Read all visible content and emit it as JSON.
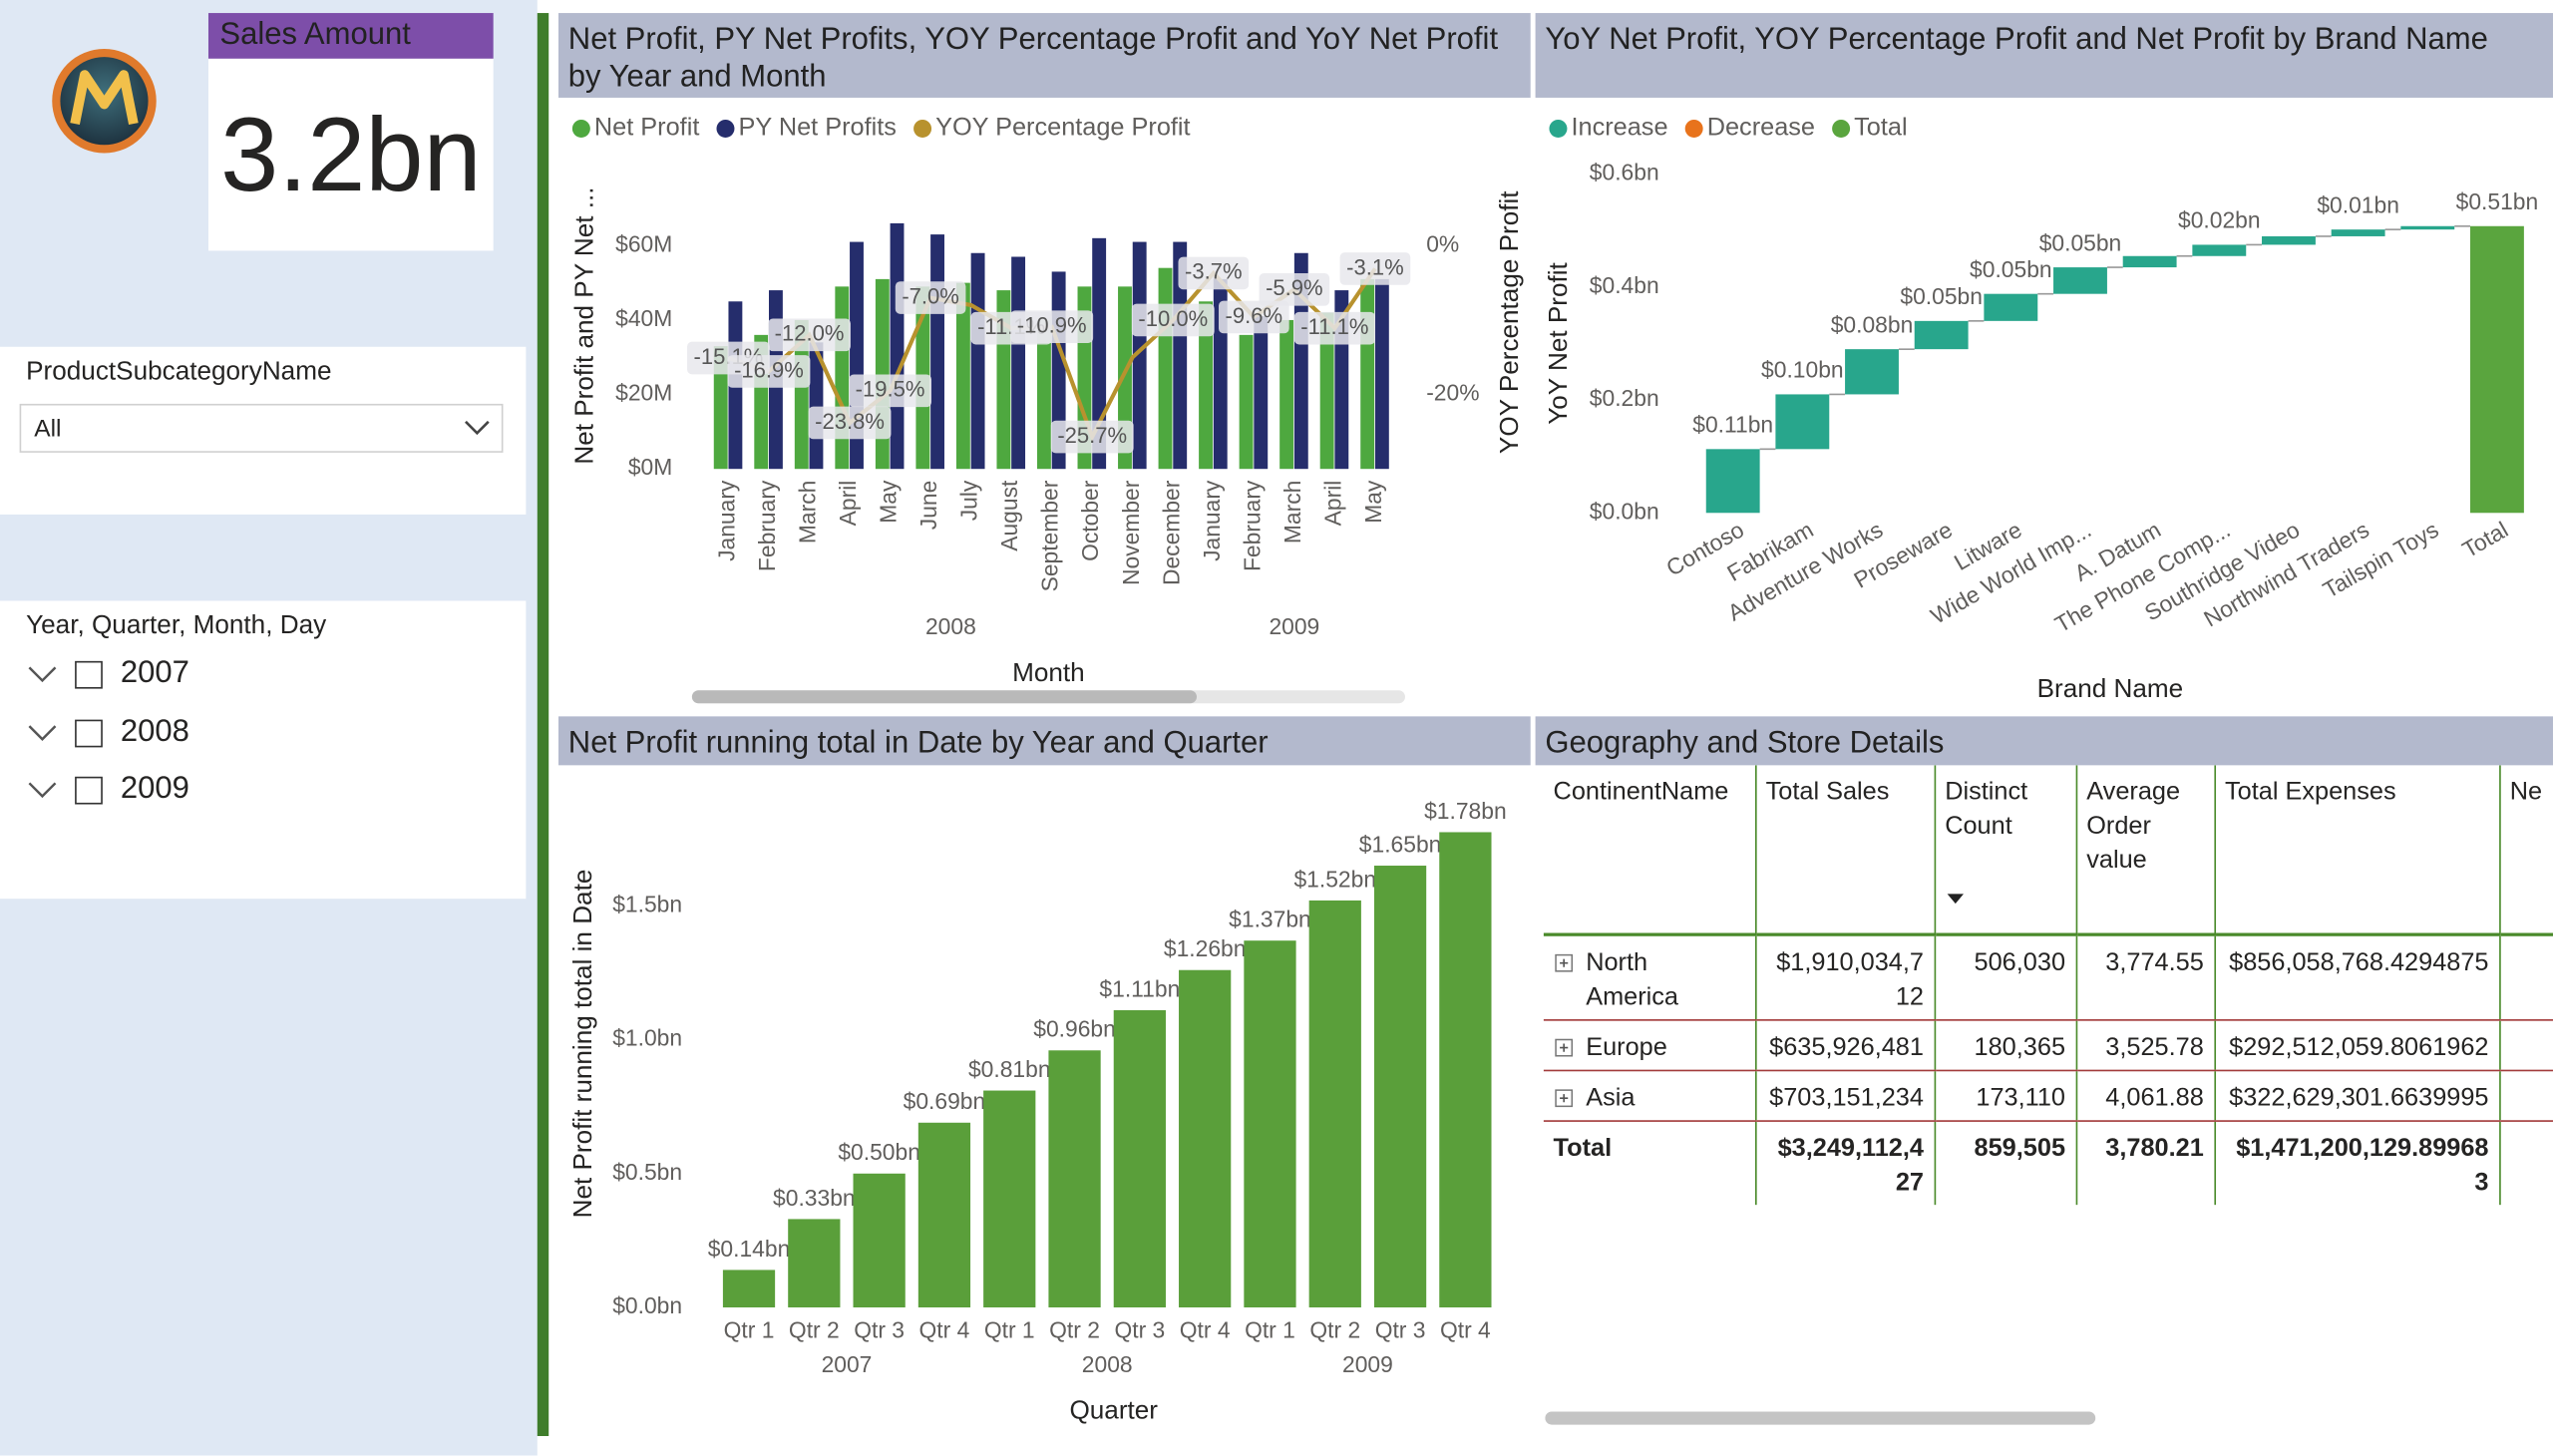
{
  "card": {
    "title": "Sales Amount",
    "value": "3.2bn"
  },
  "slicers": [
    {
      "title": "ProductSubcategoryName",
      "selected": "All"
    },
    {
      "title": "Year, Quarter, Month, Day",
      "items": [
        "2007",
        "2008",
        "2009"
      ]
    }
  ],
  "chart_data": [
    {
      "type": "bar",
      "title": "Net Profit, PY Net Profits, YOY Percentage Profit and YoY Net Profit by Year and Month",
      "x_label": "Month",
      "y_label": "Net Profit and PY Net ...",
      "y2_label": "YOY Percentage Profit",
      "categories": [
        "January",
        "February",
        "March",
        "April",
        "May",
        "June",
        "July",
        "August",
        "September",
        "October",
        "November",
        "December",
        "January",
        "February",
        "March",
        "April",
        "May"
      ],
      "groups": [
        "2008",
        "2009"
      ],
      "series": [
        {
          "name": "Net Profit",
          "color": "#4ea83f",
          "values": [
            33,
            36,
            40,
            49,
            51,
            49,
            50,
            48,
            40,
            49,
            49,
            54,
            45,
            36,
            40,
            42,
            51
          ]
        },
        {
          "name": "PY Net Profits",
          "color": "#252d6c",
          "values": [
            45,
            48,
            34,
            61,
            66,
            63,
            58,
            57,
            53,
            62,
            61,
            61,
            51,
            41,
            58,
            48,
            51
          ]
        },
        {
          "name": "YOY Percentage Profit",
          "type": "line",
          "axis": "y2",
          "color": "#b8922e",
          "values": [
            -15.1,
            -16.9,
            -12.0,
            -23.8,
            -19.5,
            -7.0,
            -8,
            -11.1,
            -10.9,
            -25.7,
            -15,
            -10.0,
            -3.7,
            -9.6,
            -5.9,
            -11.1,
            -3.1
          ],
          "value_labels": [
            "-15.1%",
            "-16.9%",
            "-12.0%",
            "-23.8%",
            "-19.5%",
            "-7.0%",
            null,
            "-11.1%",
            "-10.9%",
            "-25.7%",
            null,
            "-10.0%",
            "-3.7%",
            "-9.6%",
            "-5.9%",
            "-11.1%",
            "-3.1%"
          ]
        }
      ],
      "ylim": [
        0,
        70
      ],
      "yticks": [
        {
          "value": 0,
          "label": "$0M"
        },
        {
          "value": 20,
          "label": "$20M"
        },
        {
          "value": 40,
          "label": "$40M"
        },
        {
          "value": 60,
          "label": "$60M"
        }
      ],
      "y2lim": [
        -30,
        5
      ],
      "y2ticks": [
        {
          "value": -20,
          "label": "-20%"
        },
        {
          "value": 0,
          "label": "0%"
        }
      ]
    },
    {
      "type": "waterfall",
      "title": "YoY Net Profit, YOY Percentage Profit and Net Profit by Brand Name",
      "x_label": "Brand Name",
      "y_label": "YoY Net Profit",
      "legend": [
        {
          "name": "Increase",
          "color": "#28a68c"
        },
        {
          "name": "Decrease",
          "color": "#e8731c"
        },
        {
          "name": "Total",
          "color": "#5aa53e"
        }
      ],
      "categories": [
        "Contoso",
        "Fabrikam",
        "Adventure Works",
        "Proseware",
        "Litware",
        "Wide World Imp...",
        "A. Datum",
        "The Phone Comp...",
        "Southridge Video",
        "Northwind Traders",
        "Tailspin Toys",
        "Total"
      ],
      "values": [
        0.113,
        0.097,
        0.08,
        0.05,
        0.048,
        0.047,
        0.02,
        0.02,
        0.015,
        0.012,
        0.006,
        0.508
      ],
      "value_labels": [
        "$0.11bn",
        "$0.10bn",
        "$0.08bn",
        "$0.05bn",
        "$0.05bn",
        "$0.05bn",
        null,
        "$0.02bn",
        null,
        "$0.01bn",
        null,
        "$0.51bn"
      ],
      "ylim": [
        0,
        0.6
      ],
      "yticks": [
        {
          "value": 0,
          "label": "$0.0bn"
        },
        {
          "value": 0.2,
          "label": "$0.2bn"
        },
        {
          "value": 0.4,
          "label": "$0.4bn"
        },
        {
          "value": 0.6,
          "label": "$0.6bn"
        }
      ]
    },
    {
      "type": "bar",
      "title": "Net Profit running total in Date by Year and Quarter",
      "x_label": "Quarter",
      "y_label": "Net Profit running total in Date",
      "color": "#5a9f3a",
      "categories": [
        "Qtr 1",
        "Qtr 2",
        "Qtr 3",
        "Qtr 4",
        "Qtr 1",
        "Qtr 2",
        "Qtr 3",
        "Qtr 4",
        "Qtr 1",
        "Qtr 2",
        "Qtr 3",
        "Qtr 4"
      ],
      "groups": [
        "2007",
        "2008",
        "2009"
      ],
      "values": [
        0.14,
        0.33,
        0.5,
        0.69,
        0.81,
        0.96,
        1.11,
        1.26,
        1.37,
        1.52,
        1.65,
        1.775
      ],
      "value_labels": [
        "$0.14bn",
        "$0.33bn",
        "$0.50bn",
        "$0.69bn",
        "$0.81bn",
        "$0.96bn",
        "$1.11bn",
        "$1.26bn",
        "$1.37bn",
        "$1.52bn",
        "$1.65bn",
        "$1.78bn"
      ],
      "ylim": [
        0,
        1.8
      ],
      "yticks": [
        {
          "value": 0,
          "label": "$0.0bn"
        },
        {
          "value": 0.5,
          "label": "$0.5bn"
        },
        {
          "value": 1,
          "label": "$1.0bn"
        },
        {
          "value": 1.5,
          "label": "$1.5bn"
        }
      ]
    }
  ],
  "table": {
    "title": "Geography and Store Details",
    "columns": [
      "ContinentName",
      "Total Sales",
      "Distinct Count",
      "Average Order value",
      "Total Expenses",
      "Ne"
    ],
    "rows": [
      [
        "North America",
        "$1,910,034,712",
        "506,030",
        "3,774.55",
        "$856,058,768.4294875",
        "$"
      ],
      [
        "Europe",
        "$635,926,481",
        "180,365",
        "3,525.78",
        "$292,512,059.8061962"
      ],
      [
        "Asia",
        "$703,151,234",
        "173,110",
        "4,061.88",
        "$322,629,301.6639995"
      ]
    ],
    "total": [
      "Total",
      "$3,249,112,427",
      "859,505",
      "3,780.21",
      "$1,471,200,129.899683",
      "$"
    ]
  }
}
